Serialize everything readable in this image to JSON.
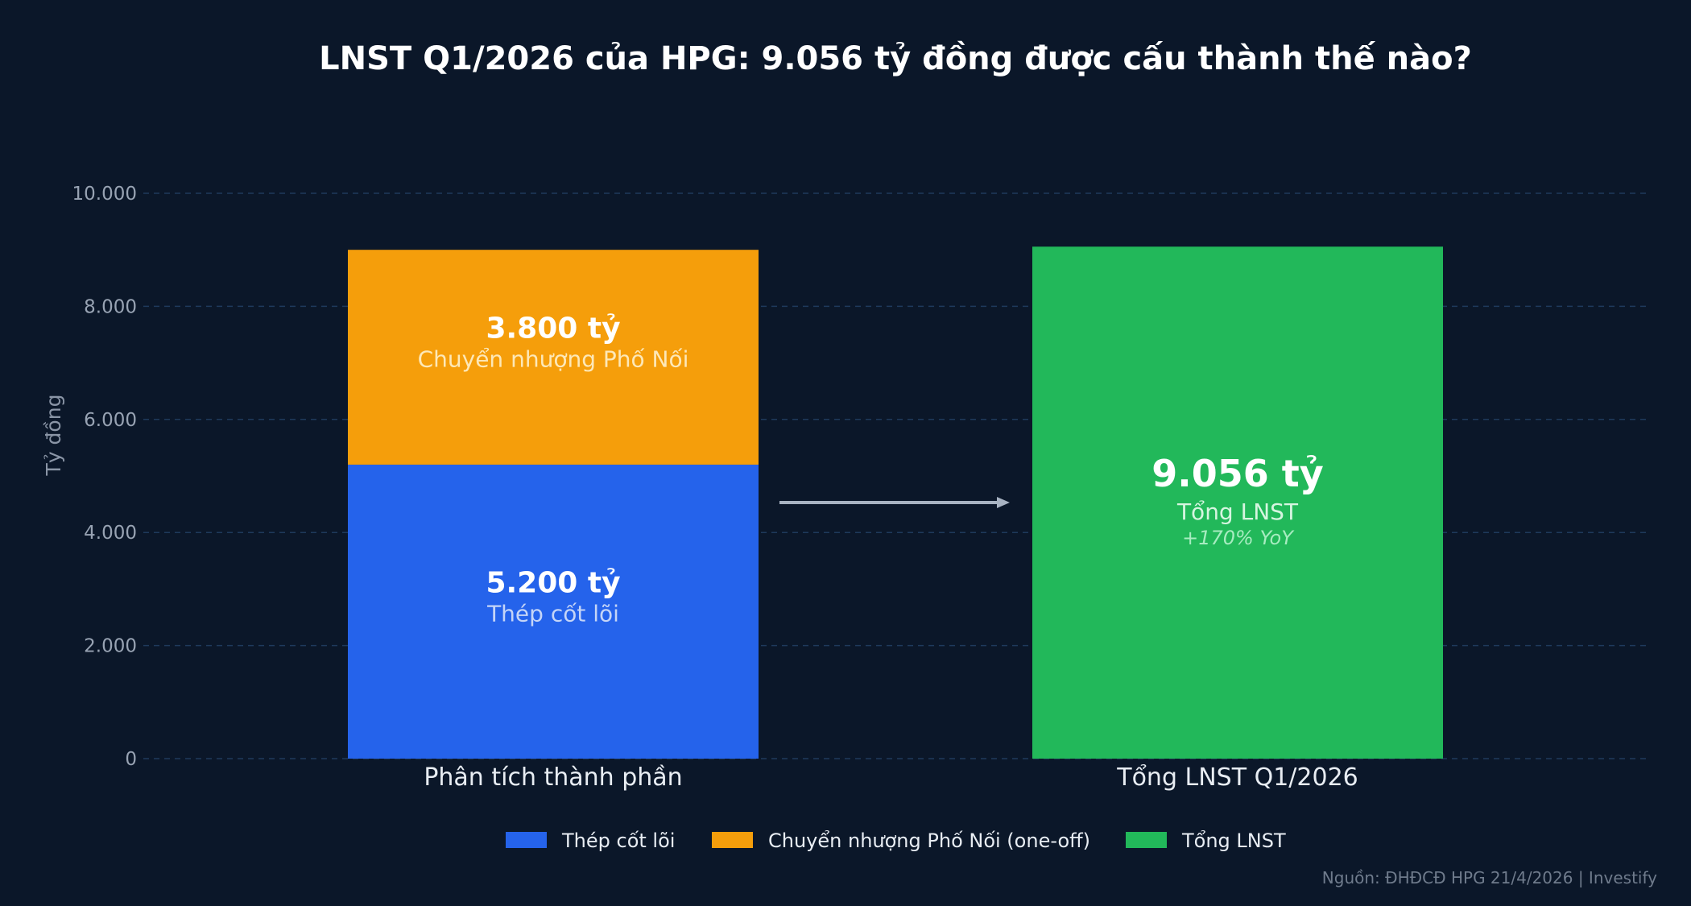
{
  "chart_data": {
    "type": "bar",
    "title": "LNST Q1/2026 của HPG: 9.056 tỷ đồng được cấu thành thế nào?",
    "ylabel": "Tỷ đồng",
    "xlabel": "",
    "ylim": [
      0,
      10000
    ],
    "yticks": [
      0,
      2000,
      4000,
      6000,
      8000,
      10000
    ],
    "ytick_labels": [
      "0",
      "2.000",
      "4.000",
      "6.000",
      "8.000",
      "10.000"
    ],
    "grid": true,
    "categories": [
      "Phân tích thành phần",
      "Tổng LNST Q1/2026"
    ],
    "series": [
      {
        "name": "Thép cốt lõi",
        "color": "#2563eb",
        "values": [
          5200,
          0
        ],
        "label": "5.200 tỷ",
        "sublabel": "Thép cốt lõi"
      },
      {
        "name": "Chuyển nhượng Phố Nối (one-off)",
        "color": "#f59e0b",
        "values": [
          3800,
          0
        ],
        "label": "3.800 tỷ",
        "sublabel": "Chuyển nhượng Phố Nối"
      },
      {
        "name": "Tổng LNST",
        "color": "#22b85a",
        "values": [
          0,
          9056
        ],
        "label": "9.056 tỷ",
        "sublabel": "Tổng LNST",
        "note": "+170% YoY"
      }
    ],
    "legend_position": "bottom-center",
    "annotation": "arrow from composition bar to total bar",
    "source": "Nguồn: ĐHĐCĐ HPG 21/4/2026  |  Investify"
  }
}
